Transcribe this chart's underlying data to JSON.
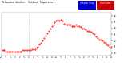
{
  "title_left": "Milwaukee Weather  Outdoor Temperature",
  "title_fontsize": 2.2,
  "bg_color": "#ffffff",
  "plot_bg_color": "#ffffff",
  "outer_bg_color": "#cccccc",
  "yticks": [
    60,
    65,
    70,
    75,
    80,
    85,
    90
  ],
  "ylim": [
    58,
    93
  ],
  "xlim": [
    0,
    1440
  ],
  "xtick_labels": [
    "12",
    "1",
    "2",
    "3",
    "4",
    "5",
    "6",
    "7",
    "8",
    "9",
    "10",
    "11",
    "12",
    "1",
    "2",
    "3",
    "4",
    "5",
    "6",
    "7",
    "8",
    "9",
    "10",
    "11",
    "12"
  ],
  "xtick_positions": [
    0,
    60,
    120,
    180,
    240,
    300,
    360,
    420,
    480,
    540,
    600,
    660,
    720,
    780,
    840,
    900,
    960,
    1020,
    1080,
    1140,
    1200,
    1260,
    1320,
    1380,
    1440
  ],
  "data_color": "#ff0000",
  "dot_size": 0.9,
  "vline_x": 360,
  "vline_color": "#aaaaaa",
  "temp_data_x": [
    0,
    20,
    40,
    60,
    80,
    100,
    120,
    140,
    160,
    180,
    200,
    220,
    240,
    260,
    280,
    300,
    320,
    340,
    360,
    380,
    400,
    420,
    440,
    460,
    480,
    500,
    520,
    540,
    560,
    580,
    600,
    620,
    640,
    660,
    680,
    700,
    720,
    740,
    760,
    780,
    800,
    820,
    840,
    860,
    880,
    900,
    920,
    940,
    960,
    980,
    1000,
    1020,
    1040,
    1060,
    1080,
    1100,
    1120,
    1140,
    1160,
    1180,
    1200,
    1220,
    1240,
    1260,
    1280,
    1300,
    1320,
    1340,
    1360,
    1380,
    1400,
    1420,
    1440
  ],
  "temp_data_y": [
    62,
    62,
    62,
    61,
    61,
    61,
    61,
    61,
    61,
    61,
    61,
    61,
    61,
    61,
    62,
    62,
    62,
    62,
    62,
    62,
    63,
    63,
    63,
    64,
    65,
    67,
    68,
    70,
    72,
    74,
    76,
    78,
    80,
    82,
    83,
    85,
    86,
    87,
    86,
    87,
    86,
    84,
    83,
    83,
    83,
    83,
    82,
    82,
    82,
    83,
    82,
    82,
    81,
    80,
    80,
    79,
    78,
    78,
    77,
    77,
    76,
    75,
    73,
    72,
    71,
    71,
    70,
    69,
    68,
    67,
    66,
    65,
    64
  ],
  "legend_blue_color": "#0000cc",
  "legend_red_color": "#cc0000",
  "legend_text_color": "#ffffff",
  "legend_label1": "Outdoor Temp",
  "legend_label2": "Heat Index"
}
